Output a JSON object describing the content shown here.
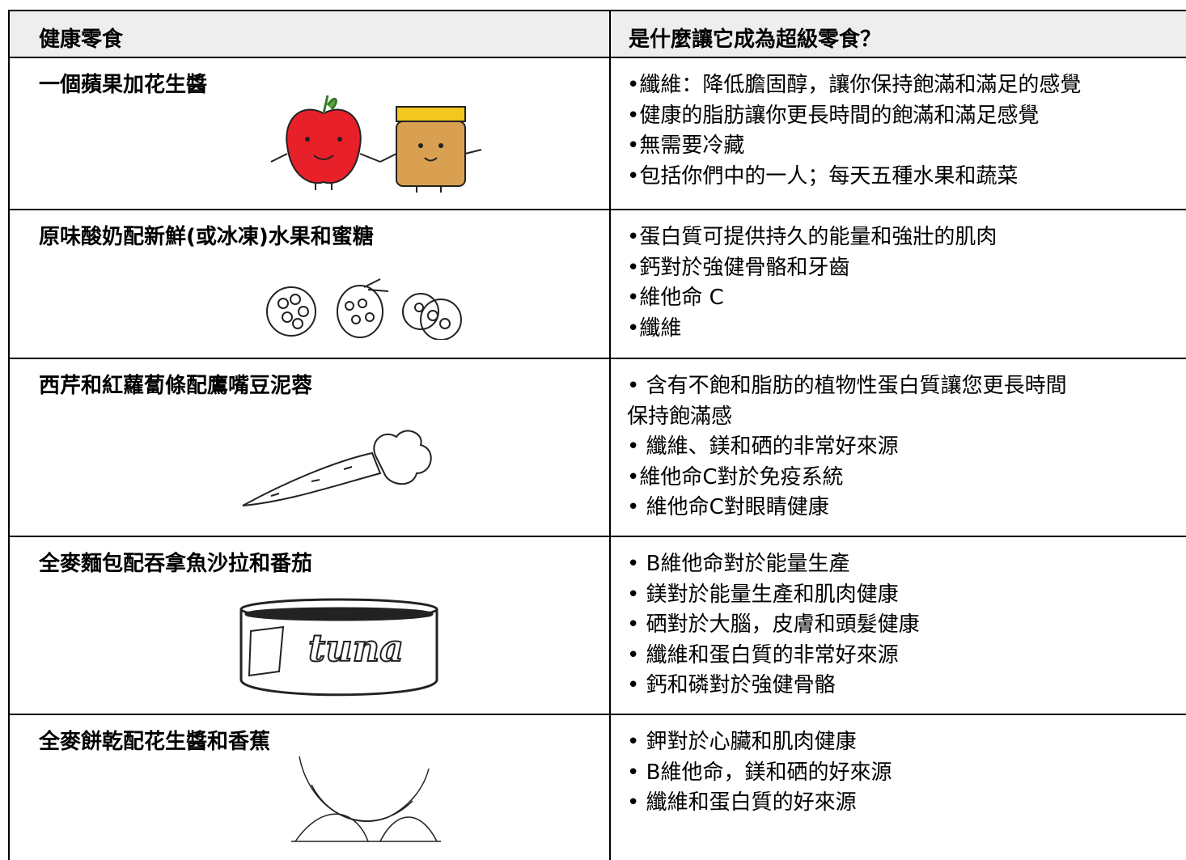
{
  "table": {
    "header": [
      "健康零食",
      "是什麼讓它成為超級零食？"
    ],
    "rows": [
      {
        "snack": "一個蘋果加花生醬",
        "reasons": [
          "•纖維：降低膽固醇，讓你保持飽滿和滿足的感覺",
          "•健康的脂肪讓你更長時間的飽滿和滿足感覺",
          "•無需要冷藏",
          "•包括你們中的一人；每天五種水果和蔬菜"
        ]
      },
      {
        "snack": "原味酸奶配新鮮(或冰凍)水果和蜜糖",
        "reasons": [
          "•蛋白質可提供持久的能量和強壯的肌肉",
          "•鈣對於強健骨骼和牙齒",
          "•維他命 C",
          "•纖維"
        ]
      },
      {
        "snack": "西芹和紅蘿蔔條配鷹嘴豆泥蓉",
        "reasons": [
          "• 含有不飽和脂肪的植物性蛋白質讓您更長時間",
          "保持飽滿感",
          "• 纖維、鎂和硒的非常好來源",
          "•維他命C對於免疫系統",
          "• 維他命C對眼睛健康"
        ]
      },
      {
        "snack": "全麥麵包配吞拿魚沙拉和番茄",
        "image_text": "tuna",
        "reasons": [
          "• B維他命對於能量生產",
          "• 鎂對於能量生產和肌肉健康",
          "• 硒對於大腦，皮膚和頭髮健康",
          "• 纖維和蛋白質的非常好來源",
          "• 鈣和磷對於強健骨骼"
        ]
      },
      {
        "snack": "全麥餅乾配花生醬和香蕉",
        "reasons": [
          "• 鉀對於心臟和肌肉健康",
          "• B維他命，鎂和硒的好來源",
          "• 纖維和蛋白質的好來源"
        ]
      }
    ]
  }
}
